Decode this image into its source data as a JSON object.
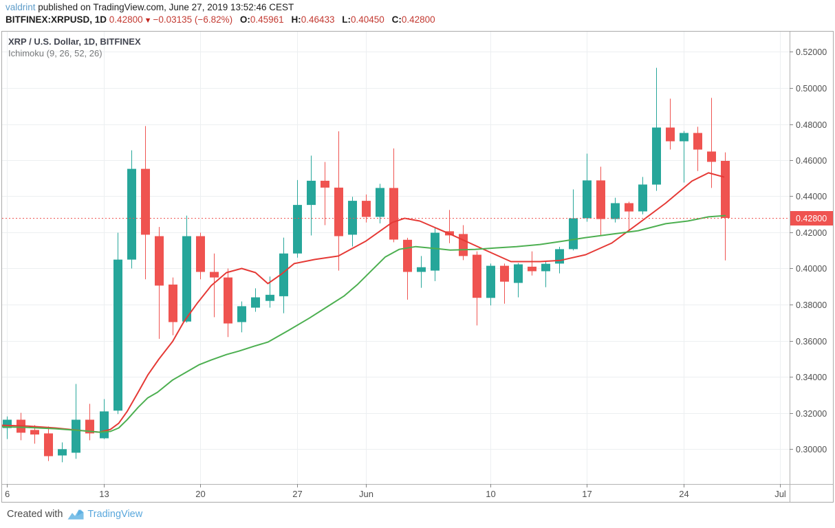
{
  "header": {
    "author": "valdrint",
    "published_text": " published on TradingView.com, June 27, 2019 13:52:46 CEST",
    "symbol": "BITFINEX:XRPUSD, 1D",
    "last_price": "0.42800",
    "change_arrow": "▼",
    "change_text": "−0.03135 (−6.82%)",
    "ohlc": [
      {
        "label": "O:",
        "value": "0.45961"
      },
      {
        "label": "H:",
        "value": "0.46433"
      },
      {
        "label": "L:",
        "value": "0.40450"
      },
      {
        "label": "C:",
        "value": "0.42800"
      }
    ]
  },
  "legend": {
    "title": "XRP / U.S. Dollar, 1D, BITFINEX",
    "indicator": "Ichimoku (9, 26, 52, 26)"
  },
  "footer": {
    "created_with": "Created with",
    "brand": "TradingView"
  },
  "colors": {
    "up": "#26a69a",
    "down": "#ef5350",
    "conversion_line": "#e53935",
    "base_line": "#4caf50",
    "dotted_line": "#ef5350",
    "price_label_bg": "#ef5350",
    "price_label_text": "#ffffff",
    "grid": "#eceff1",
    "axis_text": "#4f4f4f",
    "axis_border": "#b2b2b2",
    "tick": "#848484"
  },
  "chart_data": {
    "type": "candlestick",
    "title": "XRP / U.S. Dollar",
    "exchange": "BITFINEX",
    "interval": "1D",
    "indicator": "Ichimoku (9, 26, 52, 26)",
    "y_axis": {
      "side": "right",
      "min": 0.29,
      "max": 0.525,
      "ticks": [
        {
          "price": 0.52,
          "label": "0.52000"
        },
        {
          "price": 0.5,
          "label": "0.50000"
        },
        {
          "price": 0.48,
          "label": "0.48000"
        },
        {
          "price": 0.46,
          "label": "0.46000"
        },
        {
          "price": 0.44,
          "label": "0.44000"
        },
        {
          "price": 0.42,
          "label": "0.42000"
        },
        {
          "price": 0.4,
          "label": "0.40000"
        },
        {
          "price": 0.38,
          "label": "0.38000"
        },
        {
          "price": 0.36,
          "label": "0.36000"
        },
        {
          "price": 0.34,
          "label": "0.34000"
        },
        {
          "price": 0.32,
          "label": "0.32000"
        },
        {
          "price": 0.3,
          "label": "0.30000"
        }
      ]
    },
    "x_axis": {
      "ticks": [
        {
          "day": 0,
          "label": "6"
        },
        {
          "day": 7,
          "label": "13"
        },
        {
          "day": 14,
          "label": "20"
        },
        {
          "day": 21,
          "label": "27"
        },
        {
          "day": 26,
          "label": "Jun"
        },
        {
          "day": 35,
          "label": "10"
        },
        {
          "day": 42,
          "label": "17"
        },
        {
          "day": 49,
          "label": "24"
        },
        {
          "day": 56,
          "label": "Jul"
        }
      ]
    },
    "last_price": {
      "price": 0.428,
      "label": "0.42800"
    },
    "candles": [
      {
        "date": "May 6",
        "o": 0.3116,
        "h": 0.318,
        "l": 0.3055,
        "c": 0.3162
      },
      {
        "date": "May 7",
        "o": 0.3162,
        "h": 0.32,
        "l": 0.3048,
        "c": 0.309
      },
      {
        "date": "May 8",
        "o": 0.3105,
        "h": 0.3132,
        "l": 0.3029,
        "c": 0.308
      },
      {
        "date": "May 9",
        "o": 0.3086,
        "h": 0.3124,
        "l": 0.2933,
        "c": 0.296
      },
      {
        "date": "May 10",
        "o": 0.2964,
        "h": 0.3036,
        "l": 0.2926,
        "c": 0.2999
      },
      {
        "date": "May 11",
        "o": 0.2979,
        "h": 0.336,
        "l": 0.2945,
        "c": 0.3162
      },
      {
        "date": "May 12",
        "o": 0.3162,
        "h": 0.325,
        "l": 0.3048,
        "c": 0.3086
      },
      {
        "date": "May 13",
        "o": 0.3059,
        "h": 0.3276,
        "l": 0.3055,
        "c": 0.3208
      },
      {
        "date": "May 14",
        "o": 0.3212,
        "h": 0.4198,
        "l": 0.3193,
        "c": 0.4049
      },
      {
        "date": "May 15",
        "o": 0.4049,
        "h": 0.4655,
        "l": 0.4,
        "c": 0.4552
      },
      {
        "date": "May 16",
        "o": 0.4552,
        "h": 0.4789,
        "l": 0.394,
        "c": 0.4187
      },
      {
        "date": "May 17",
        "o": 0.4179,
        "h": 0.423,
        "l": 0.361,
        "c": 0.3905
      },
      {
        "date": "May 18",
        "o": 0.3911,
        "h": 0.395,
        "l": 0.363,
        "c": 0.3703
      },
      {
        "date": "May 19",
        "o": 0.3706,
        "h": 0.4293,
        "l": 0.37,
        "c": 0.4179
      },
      {
        "date": "May 20",
        "o": 0.4179,
        "h": 0.4198,
        "l": 0.394,
        "c": 0.3981
      },
      {
        "date": "May 21",
        "o": 0.3981,
        "h": 0.4083,
        "l": 0.373,
        "c": 0.395
      },
      {
        "date": "May 22",
        "o": 0.395,
        "h": 0.4,
        "l": 0.362,
        "c": 0.3695
      },
      {
        "date": "May 23",
        "o": 0.3703,
        "h": 0.3817,
        "l": 0.3646,
        "c": 0.3791
      },
      {
        "date": "May 24",
        "o": 0.3783,
        "h": 0.389,
        "l": 0.376,
        "c": 0.384
      },
      {
        "date": "May 25",
        "o": 0.382,
        "h": 0.3955,
        "l": 0.3783,
        "c": 0.3854
      },
      {
        "date": "May 26",
        "o": 0.3846,
        "h": 0.4171,
        "l": 0.3752,
        "c": 0.4083
      },
      {
        "date": "May 27",
        "o": 0.4083,
        "h": 0.449,
        "l": 0.406,
        "c": 0.4352
      },
      {
        "date": "May 28",
        "o": 0.4352,
        "h": 0.4625,
        "l": 0.4183,
        "c": 0.4486
      },
      {
        "date": "May 29",
        "o": 0.4486,
        "h": 0.459,
        "l": 0.424,
        "c": 0.4448
      },
      {
        "date": "May 30",
        "o": 0.4448,
        "h": 0.476,
        "l": 0.3988,
        "c": 0.4179
      },
      {
        "date": "May 31",
        "o": 0.4187,
        "h": 0.4397,
        "l": 0.4122,
        "c": 0.4375
      },
      {
        "date": "Jun 1",
        "o": 0.4375,
        "h": 0.441,
        "l": 0.4255,
        "c": 0.4286
      },
      {
        "date": "Jun 2",
        "o": 0.4286,
        "h": 0.4469,
        "l": 0.425,
        "c": 0.4446
      },
      {
        "date": "Jun 3",
        "o": 0.4446,
        "h": 0.4665,
        "l": 0.4145,
        "c": 0.416
      },
      {
        "date": "Jun 4",
        "o": 0.4159,
        "h": 0.417,
        "l": 0.3827,
        "c": 0.3981
      },
      {
        "date": "Jun 5",
        "o": 0.3981,
        "h": 0.4069,
        "l": 0.3893,
        "c": 0.4007
      },
      {
        "date": "Jun 6",
        "o": 0.3988,
        "h": 0.4225,
        "l": 0.393,
        "c": 0.4198
      },
      {
        "date": "Jun 7",
        "o": 0.4206,
        "h": 0.4324,
        "l": 0.414,
        "c": 0.4183
      },
      {
        "date": "Jun 8",
        "o": 0.4191,
        "h": 0.424,
        "l": 0.4046,
        "c": 0.4069
      },
      {
        "date": "Jun 9",
        "o": 0.4076,
        "h": 0.4095,
        "l": 0.3684,
        "c": 0.3837
      },
      {
        "date": "Jun 10",
        "o": 0.3837,
        "h": 0.4027,
        "l": 0.3795,
        "c": 0.4015
      },
      {
        "date": "Jun 11",
        "o": 0.4015,
        "h": 0.4027,
        "l": 0.3805,
        "c": 0.3927
      },
      {
        "date": "Jun 12",
        "o": 0.392,
        "h": 0.403,
        "l": 0.384,
        "c": 0.4023
      },
      {
        "date": "Jun 13",
        "o": 0.401,
        "h": 0.4095,
        "l": 0.3961,
        "c": 0.3985
      },
      {
        "date": "Jun 14",
        "o": 0.3985,
        "h": 0.404,
        "l": 0.3896,
        "c": 0.4026
      },
      {
        "date": "Jun 15",
        "o": 0.4027,
        "h": 0.412,
        "l": 0.3973,
        "c": 0.4107
      },
      {
        "date": "Jun 16",
        "o": 0.4107,
        "h": 0.4438,
        "l": 0.41,
        "c": 0.4278
      },
      {
        "date": "Jun 17",
        "o": 0.4278,
        "h": 0.4636,
        "l": 0.4259,
        "c": 0.4488
      },
      {
        "date": "Jun 18",
        "o": 0.4488,
        "h": 0.4564,
        "l": 0.4179,
        "c": 0.4274
      },
      {
        "date": "Jun 19",
        "o": 0.4274,
        "h": 0.4392,
        "l": 0.4255,
        "c": 0.4362
      },
      {
        "date": "Jun 20",
        "o": 0.4362,
        "h": 0.437,
        "l": 0.421,
        "c": 0.4316
      },
      {
        "date": "Jun 21",
        "o": 0.4316,
        "h": 0.4507,
        "l": 0.43,
        "c": 0.4465
      },
      {
        "date": "Jun 22",
        "o": 0.4465,
        "h": 0.5112,
        "l": 0.443,
        "c": 0.4781
      },
      {
        "date": "Jun 23",
        "o": 0.4781,
        "h": 0.4941,
        "l": 0.4659,
        "c": 0.4705
      },
      {
        "date": "Jun 24",
        "o": 0.4705,
        "h": 0.4762,
        "l": 0.4476,
        "c": 0.4751
      },
      {
        "date": "Jun 25",
        "o": 0.4751,
        "h": 0.4785,
        "l": 0.454,
        "c": 0.4659
      },
      {
        "date": "Jun 26",
        "o": 0.4648,
        "h": 0.4945,
        "l": 0.4446,
        "c": 0.4591
      },
      {
        "date": "Jun 27",
        "o": 0.45961,
        "h": 0.46433,
        "l": 0.4045,
        "c": 0.428
      }
    ],
    "overlays": [
      {
        "name": "conversion-line-9",
        "color": "#e53935",
        "points": [
          [
            -0.5,
            0.3131
          ],
          [
            1.5,
            0.3127
          ],
          [
            3.5,
            0.3116
          ],
          [
            5.5,
            0.3101
          ],
          [
            6.7,
            0.3093
          ],
          [
            7.5,
            0.3108
          ],
          [
            8.1,
            0.3142
          ],
          [
            8.7,
            0.3207
          ],
          [
            9.5,
            0.3314
          ],
          [
            10.2,
            0.3409
          ],
          [
            11.0,
            0.3497
          ],
          [
            12.0,
            0.3596
          ],
          [
            12.8,
            0.3703
          ],
          [
            13.8,
            0.3809
          ],
          [
            14.8,
            0.3905
          ],
          [
            15.9,
            0.3977
          ],
          [
            17.0,
            0.4
          ],
          [
            18.0,
            0.3977
          ],
          [
            18.9,
            0.3916
          ],
          [
            19.9,
            0.397
          ],
          [
            20.8,
            0.4027
          ],
          [
            22.3,
            0.405
          ],
          [
            24.0,
            0.4069
          ],
          [
            26.0,
            0.4152
          ],
          [
            27.9,
            0.4255
          ],
          [
            28.8,
            0.4278
          ],
          [
            29.9,
            0.4263
          ],
          [
            32.1,
            0.419
          ],
          [
            34.4,
            0.411
          ],
          [
            36.5,
            0.4038
          ],
          [
            38.6,
            0.4038
          ],
          [
            40.1,
            0.4045
          ],
          [
            41.9,
            0.4076
          ],
          [
            43.8,
            0.4141
          ],
          [
            45.7,
            0.4248
          ],
          [
            47.7,
            0.4362
          ],
          [
            49.6,
            0.4484
          ],
          [
            50.8,
            0.453
          ],
          [
            51.9,
            0.4507
          ]
        ]
      },
      {
        "name": "base-line-26",
        "color": "#4caf50",
        "points": [
          [
            -0.5,
            0.3123
          ],
          [
            1.5,
            0.3119
          ],
          [
            3.5,
            0.3112
          ],
          [
            5.5,
            0.3101
          ],
          [
            6.7,
            0.3093
          ],
          [
            7.5,
            0.3097
          ],
          [
            8.1,
            0.3116
          ],
          [
            8.7,
            0.3161
          ],
          [
            9.5,
            0.323
          ],
          [
            10.2,
            0.3283
          ],
          [
            10.9,
            0.3314
          ],
          [
            12.0,
            0.3382
          ],
          [
            12.8,
            0.3417
          ],
          [
            13.9,
            0.3466
          ],
          [
            14.8,
            0.3493
          ],
          [
            15.9,
            0.3523
          ],
          [
            16.8,
            0.3542
          ],
          [
            17.9,
            0.3569
          ],
          [
            18.9,
            0.3592
          ],
          [
            20.4,
            0.3657
          ],
          [
            21.9,
            0.3725
          ],
          [
            23.4,
            0.3798
          ],
          [
            24.4,
            0.3847
          ],
          [
            25.4,
            0.3912
          ],
          [
            26.4,
            0.3988
          ],
          [
            27.4,
            0.4064
          ],
          [
            28.4,
            0.4106
          ],
          [
            29.6,
            0.4121
          ],
          [
            31.1,
            0.411
          ],
          [
            32.1,
            0.4102
          ],
          [
            33.9,
            0.4106
          ],
          [
            35.4,
            0.4114
          ],
          [
            36.9,
            0.4121
          ],
          [
            38.6,
            0.4133
          ],
          [
            40.3,
            0.4152
          ],
          [
            41.9,
            0.4171
          ],
          [
            43.8,
            0.419
          ],
          [
            45.7,
            0.4209
          ],
          [
            47.7,
            0.4248
          ],
          [
            49.3,
            0.4263
          ],
          [
            50.8,
            0.4286
          ],
          [
            52.0,
            0.4293
          ]
        ]
      }
    ]
  }
}
